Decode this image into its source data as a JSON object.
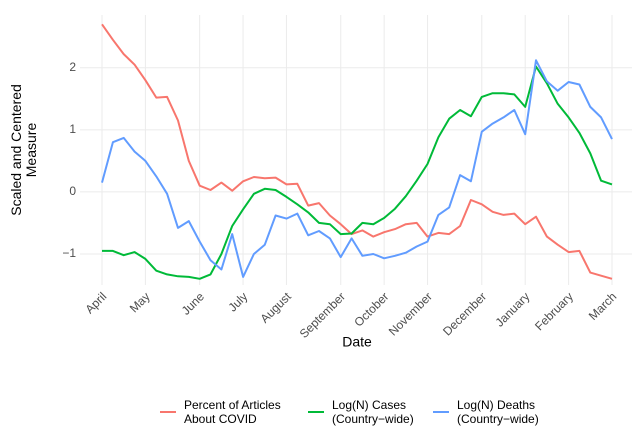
{
  "chart_data": {
    "type": "line",
    "x_label": "Date",
    "y_label": "Scaled and Centered\nMeasure",
    "categories": [
      "April",
      null,
      null,
      null,
      "May",
      null,
      null,
      null,
      null,
      "June",
      null,
      null,
      null,
      "July",
      null,
      null,
      null,
      "August",
      null,
      null,
      null,
      null,
      "September",
      null,
      null,
      null,
      "October",
      null,
      null,
      null,
      "November",
      null,
      null,
      null,
      null,
      "December",
      null,
      null,
      null,
      "January",
      null,
      null,
      null,
      "February",
      null,
      null,
      null,
      "March"
    ],
    "series": [
      {
        "name": "Percent of Articles\nAbout COVID",
        "color": "#F8766D",
        "values": [
          2.7,
          2.45,
          2.22,
          2.05,
          1.8,
          1.52,
          1.53,
          1.15,
          0.5,
          0.1,
          0.03,
          0.15,
          0.02,
          0.17,
          0.24,
          0.22,
          0.23,
          0.12,
          0.13,
          -0.22,
          -0.18,
          -0.38,
          -0.52,
          -0.68,
          -0.62,
          -0.72,
          -0.65,
          -0.6,
          -0.52,
          -0.5,
          -0.72,
          -0.66,
          -0.68,
          -0.55,
          -0.13,
          -0.2,
          -0.32,
          -0.37,
          -0.35,
          -0.52,
          -0.4,
          -0.72,
          -0.85,
          -0.97,
          -0.95,
          -1.3,
          -1.35,
          -1.4
        ]
      },
      {
        "name": "Log(N) Cases\n(Country−wide)",
        "color": "#00BA38",
        "values": [
          -0.95,
          -0.95,
          -1.02,
          -0.97,
          -1.08,
          -1.27,
          -1.33,
          -1.36,
          -1.37,
          -1.4,
          -1.33,
          -1.0,
          -0.55,
          -0.28,
          -0.03,
          0.05,
          0.03,
          -0.08,
          -0.2,
          -0.33,
          -0.5,
          -0.52,
          -0.68,
          -0.67,
          -0.5,
          -0.52,
          -0.42,
          -0.27,
          -0.07,
          0.18,
          0.45,
          0.88,
          1.18,
          1.32,
          1.22,
          1.53,
          1.59,
          1.59,
          1.57,
          1.37,
          2.02,
          1.75,
          1.42,
          1.2,
          0.95,
          0.62,
          0.18,
          0.12
        ]
      },
      {
        "name": "Log(N) Deaths\n(Country−wide)",
        "color": "#619CFF",
        "values": [
          0.15,
          0.8,
          0.87,
          0.65,
          0.5,
          0.25,
          -0.03,
          -0.58,
          -0.47,
          -0.8,
          -1.1,
          -1.25,
          -0.68,
          -1.37,
          -1.0,
          -0.85,
          -0.38,
          -0.43,
          -0.35,
          -0.7,
          -0.63,
          -0.75,
          -1.05,
          -0.75,
          -1.03,
          -1.0,
          -1.07,
          -1.03,
          -0.98,
          -0.88,
          -0.8,
          -0.37,
          -0.25,
          0.27,
          0.17,
          0.97,
          1.1,
          1.2,
          1.32,
          0.93,
          2.12,
          1.78,
          1.63,
          1.77,
          1.73,
          1.37,
          1.2,
          0.85
        ]
      }
    ],
    "ylim": [
      -1.5,
      2.85
    ],
    "yticks": [
      {
        "value": -1,
        "label": "−1"
      },
      0,
      1,
      2
    ],
    "grid": true,
    "legend": "bottom"
  }
}
